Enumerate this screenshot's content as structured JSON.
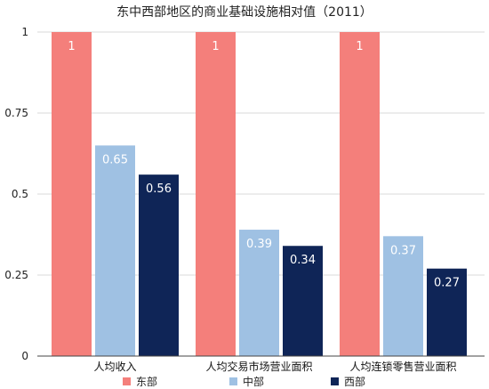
{
  "chart_data": {
    "type": "bar",
    "title": "东中西部地区的商业基础设施相对值（2011）",
    "categories": [
      "人均收入",
      "人均交易市场营业面积",
      "人均连锁零售营业面积"
    ],
    "series": [
      {
        "name": "东部",
        "color": "#f47f7b",
        "values": [
          1,
          1,
          1
        ]
      },
      {
        "name": "中部",
        "color": "#9fc1e3",
        "values": [
          0.65,
          0.39,
          0.37
        ]
      },
      {
        "name": "西部",
        "color": "#0f2557",
        "values": [
          0.56,
          0.34,
          0.27
        ]
      }
    ],
    "value_labels": [
      [
        "1",
        "1",
        "1"
      ],
      [
        "0.65",
        "0.39",
        "0.37"
      ],
      [
        "0.56",
        "0.34",
        "0.27"
      ]
    ],
    "y_ticks": [
      0,
      0.25,
      0.5,
      0.75,
      1
    ],
    "y_tick_labels": [
      "0",
      "0.25",
      "0.5",
      "0.75",
      "1"
    ],
    "ylim": [
      0,
      1
    ],
    "grid": true,
    "legend_position": "bottom"
  }
}
